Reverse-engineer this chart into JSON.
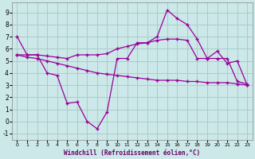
{
  "xlabel": "Windchill (Refroidissement éolien,°C)",
  "background_color": "#cce8e8",
  "grid_color": "#aacccc",
  "line_color": "#990099",
  "series1": {
    "x": [
      0,
      1,
      2,
      3,
      4,
      5,
      6,
      7,
      8,
      9,
      10,
      11,
      12,
      13,
      14,
      15,
      16,
      17,
      18,
      19,
      20,
      21,
      22,
      23
    ],
    "y": [
      7.0,
      5.5,
      5.5,
      4.0,
      3.8,
      1.5,
      1.6,
      0.0,
      -0.6,
      0.8,
      5.2,
      5.2,
      6.5,
      6.5,
      7.0,
      9.2,
      8.5,
      8.0,
      6.8,
      5.2,
      5.8,
      4.8,
      5.0,
      3.0
    ]
  },
  "series2": {
    "x": [
      0,
      1,
      2,
      3,
      4,
      5,
      6,
      7,
      8,
      9,
      10,
      11,
      12,
      13,
      14,
      15,
      16,
      17,
      18,
      19,
      20,
      21,
      22,
      23
    ],
    "y": [
      5.5,
      5.5,
      5.5,
      5.4,
      5.3,
      5.2,
      5.5,
      5.5,
      5.5,
      5.6,
      6.0,
      6.2,
      6.4,
      6.5,
      6.7,
      6.8,
      6.8,
      6.7,
      5.2,
      5.2,
      5.2,
      5.2,
      3.3,
      3.1
    ]
  },
  "series3": {
    "x": [
      0,
      1,
      2,
      3,
      4,
      5,
      6,
      7,
      8,
      9,
      10,
      11,
      12,
      13,
      14,
      15,
      16,
      17,
      18,
      19,
      20,
      21,
      22,
      23
    ],
    "y": [
      5.5,
      5.3,
      5.2,
      5.0,
      4.8,
      4.6,
      4.4,
      4.2,
      4.0,
      3.9,
      3.8,
      3.7,
      3.6,
      3.5,
      3.4,
      3.4,
      3.4,
      3.3,
      3.3,
      3.2,
      3.2,
      3.2,
      3.1,
      3.0
    ]
  },
  "ylim": [
    -1.5,
    9.8
  ],
  "yticks": [
    -1,
    0,
    1,
    2,
    3,
    4,
    5,
    6,
    7,
    8,
    9
  ],
  "xlim": [
    -0.5,
    23.5
  ],
  "xticks": [
    0,
    1,
    2,
    3,
    4,
    5,
    6,
    7,
    8,
    9,
    10,
    11,
    12,
    13,
    14,
    15,
    16,
    17,
    18,
    19,
    20,
    21,
    22,
    23
  ]
}
